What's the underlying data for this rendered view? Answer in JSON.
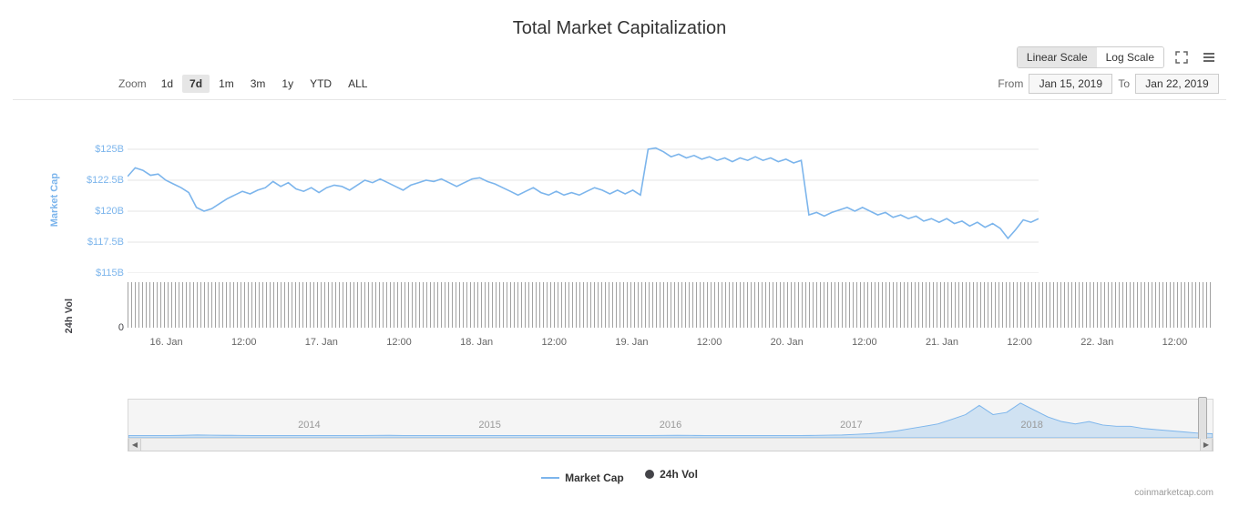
{
  "title": "Total Market Capitalization",
  "toolbar": {
    "scale_linear": "Linear Scale",
    "scale_log": "Log Scale",
    "active_scale": "linear"
  },
  "zoom": {
    "label": "Zoom",
    "options": [
      "1d",
      "7d",
      "1m",
      "3m",
      "1y",
      "YTD",
      "ALL"
    ],
    "active": "7d"
  },
  "date_range": {
    "from_label": "From",
    "to_label": "To",
    "from": "Jan 15, 2019",
    "to": "Jan 22, 2019"
  },
  "chart": {
    "type": "line",
    "mc_color": "#7cb5ec",
    "vol_color": "#434348",
    "grid_color": "#e6e6e6",
    "background_color": "#ffffff",
    "y_axis_mc": {
      "label": "Market Cap",
      "min": 115,
      "max": 127.5,
      "ticks": [
        {
          "v": 125,
          "label": "$125B"
        },
        {
          "v": 122.5,
          "label": "$122.5B"
        },
        {
          "v": 120,
          "label": "$120B"
        },
        {
          "v": 117.5,
          "label": "$117.5B"
        },
        {
          "v": 115,
          "label": "$115B"
        }
      ]
    },
    "y_axis_vol": {
      "label": "24h Vol",
      "ticks": [
        {
          "label": "0"
        }
      ]
    },
    "x_ticks": [
      "16. Jan",
      "12:00",
      "17. Jan",
      "12:00",
      "18. Jan",
      "12:00",
      "19. Jan",
      "12:00",
      "20. Jan",
      "12:00",
      "21. Jan",
      "12:00",
      "22. Jan",
      "12:00"
    ],
    "market_cap_series": [
      122.8,
      123.5,
      123.3,
      122.9,
      123.0,
      122.5,
      122.2,
      121.9,
      121.5,
      120.3,
      120.0,
      120.2,
      120.6,
      121.0,
      121.3,
      121.6,
      121.4,
      121.7,
      121.9,
      122.4,
      122.0,
      122.3,
      121.8,
      121.6,
      121.9,
      121.5,
      121.9,
      122.1,
      122.0,
      121.7,
      122.1,
      122.5,
      122.3,
      122.6,
      122.3,
      122.0,
      121.7,
      122.1,
      122.3,
      122.5,
      122.4,
      122.6,
      122.3,
      122.0,
      122.3,
      122.6,
      122.7,
      122.4,
      122.2,
      121.9,
      121.6,
      121.3,
      121.6,
      121.9,
      121.5,
      121.3,
      121.6,
      121.3,
      121.5,
      121.3,
      121.6,
      121.9,
      121.7,
      121.4,
      121.7,
      121.4,
      121.7,
      121.3,
      125.0,
      125.1,
      124.8,
      124.4,
      124.6,
      124.3,
      124.5,
      124.2,
      124.4,
      124.1,
      124.3,
      124.0,
      124.3,
      124.1,
      124.4,
      124.1,
      124.3,
      124.0,
      124.2,
      123.9,
      124.1,
      119.7,
      119.9,
      119.6,
      119.9,
      120.1,
      120.3,
      120.0,
      120.3,
      120.0,
      119.7,
      119.9,
      119.5,
      119.7,
      119.4,
      119.6,
      119.2,
      119.4,
      119.1,
      119.4,
      119.0,
      119.2,
      118.8,
      119.1,
      118.7,
      119.0,
      118.6,
      117.8,
      118.5,
      119.3,
      119.1,
      119.4
    ]
  },
  "navigator": {
    "years": [
      "2014",
      "2015",
      "2016",
      "2017",
      "2018"
    ],
    "peak_index": 0.8,
    "series": [
      2,
      2,
      2,
      2,
      2.2,
      2.5,
      2.3,
      2.2,
      2.1,
      2.0,
      2.0,
      2.0,
      2.0,
      2.0,
      2.0,
      2.0,
      2.0,
      2.0,
      2.1,
      2.2,
      2.0,
      2.0,
      2.0,
      2.0,
      2.0,
      2.0,
      2.0,
      2.0,
      2.0,
      2.0,
      2.0,
      2.0,
      2.0,
      2.0,
      2.0,
      2.0,
      2.0,
      2.0,
      2.0,
      2.1,
      2.2,
      2.1,
      2.0,
      2.0,
      2.0,
      2.0,
      2.0,
      2.0,
      2.0,
      2.0,
      2.1,
      2.3,
      2.5,
      3.0,
      3.5,
      4.5,
      6.0,
      8.0,
      10.0,
      12.0,
      16.0,
      20.0,
      28.0,
      20.0,
      22.0,
      30.0,
      24.0,
      18.0,
      14.0,
      12.0,
      14.0,
      11.0,
      10.0,
      10.0,
      8.0,
      7.0,
      6.0,
      5.0,
      4.0,
      3.5
    ]
  },
  "legend": {
    "market_cap": "Market Cap",
    "volume": "24h Vol"
  },
  "credit": "coinmarketcap.com"
}
